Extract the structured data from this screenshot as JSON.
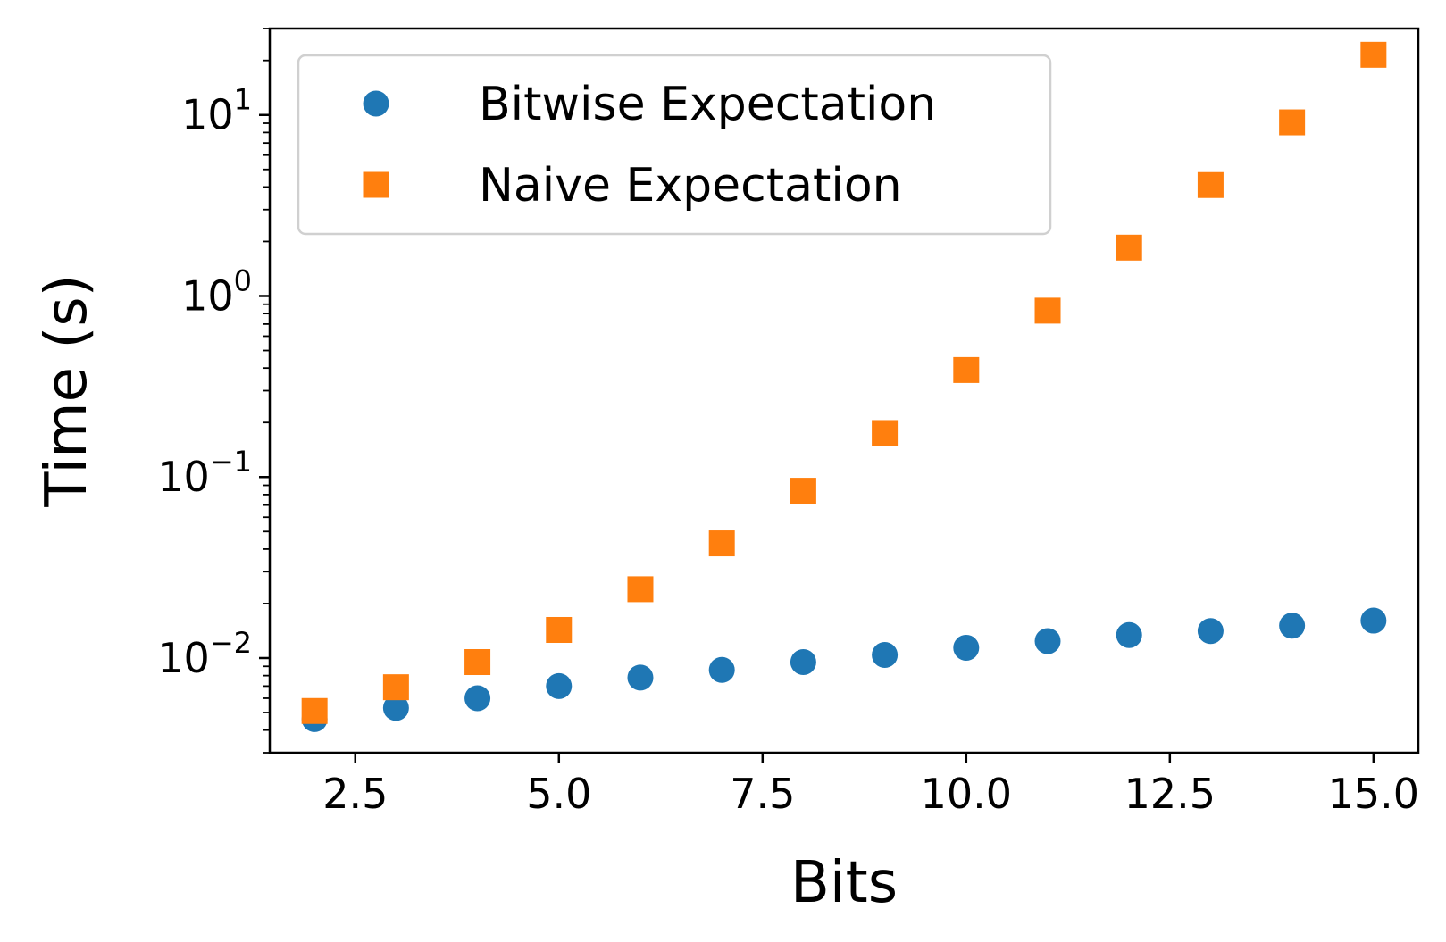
{
  "chart_data": {
    "type": "scatter",
    "xlabel": "Bits",
    "ylabel": "Time (s)",
    "xlim": [
      1.45,
      15.55
    ],
    "ylim": [
      0.003,
      30
    ],
    "yscale": "log",
    "grid": false,
    "legend_position": "top-left",
    "x_ticks": [
      "2.5",
      "5.0",
      "7.5",
      "10.0",
      "12.5",
      "15.0"
    ],
    "y_ticks": [
      {
        "base": "10",
        "exp": "−2"
      },
      {
        "base": "10",
        "exp": "−1"
      },
      {
        "base": "10",
        "exp": "0"
      },
      {
        "base": "10",
        "exp": "1"
      }
    ],
    "x": [
      2,
      3,
      4,
      5,
      6,
      7,
      8,
      9,
      10,
      11,
      12,
      13,
      14,
      15
    ],
    "series": [
      {
        "name": "Bitwise Expectation",
        "marker": "circle",
        "color": "#1f77b4",
        "values": [
          0.0046,
          0.0053,
          0.006,
          0.007,
          0.0078,
          0.0086,
          0.0095,
          0.0104,
          0.0114,
          0.0124,
          0.0134,
          0.0141,
          0.0151,
          0.0161
        ]
      },
      {
        "name": "Naive Expectation",
        "marker": "square",
        "color": "#ff7f0e",
        "values": [
          0.0051,
          0.0069,
          0.0095,
          0.0143,
          0.024,
          0.043,
          0.084,
          0.175,
          0.39,
          0.83,
          1.85,
          4.1,
          9.1,
          21.5
        ]
      }
    ]
  }
}
